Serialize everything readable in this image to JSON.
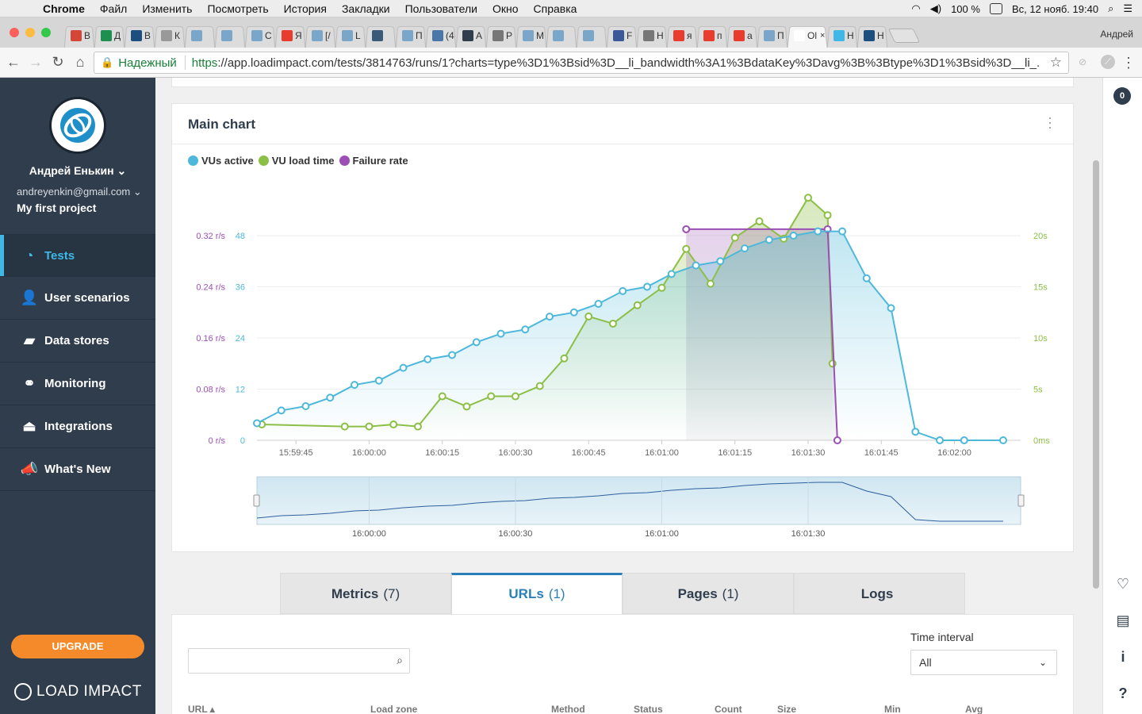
{
  "menubar": {
    "app": "Chrome",
    "items": [
      "Файл",
      "Изменить",
      "Посмотреть",
      "История",
      "Закладки",
      "Пользователи",
      "Окно",
      "Справка"
    ],
    "battery": "100 %",
    "clock": "Вс, 12 нояб.  19:40"
  },
  "tabs": [
    {
      "label": "В",
      "color": "#d44638"
    },
    {
      "label": "Д",
      "color": "#1d8f4e"
    },
    {
      "label": "В",
      "color": "#1c4f80"
    },
    {
      "label": "К",
      "color": "#999999"
    },
    {
      "label": "",
      "color": "#7aa6c9"
    },
    {
      "label": "",
      "color": "#7aa6c9"
    },
    {
      "label": "С",
      "color": "#7aa6c9"
    },
    {
      "label": "Я",
      "color": "#e93c2f"
    },
    {
      "label": "[/",
      "color": "#7aa6c9"
    },
    {
      "label": "L",
      "color": "#7aa6c9"
    },
    {
      "label": "",
      "color": "#3a5a7a"
    },
    {
      "label": "П",
      "color": "#7aa6c9"
    },
    {
      "label": "(4",
      "color": "#4a76a8"
    },
    {
      "label": "А",
      "color": "#2f3d4c"
    },
    {
      "label": "Р",
      "color": "#777777"
    },
    {
      "label": "М",
      "color": "#7aa6c9"
    },
    {
      "label": "",
      "color": "#7aa6c9"
    },
    {
      "label": "",
      "color": "#7aa6c9"
    },
    {
      "label": "F",
      "color": "#3b5998"
    },
    {
      "label": "Н",
      "color": "#777777"
    },
    {
      "label": "я",
      "color": "#e93c2f"
    },
    {
      "label": "п",
      "color": "#e93c2f"
    },
    {
      "label": "а",
      "color": "#e93c2f"
    },
    {
      "label": "П",
      "color": "#7aa6c9"
    },
    {
      "label": "Ol",
      "color": "#ffffff",
      "active": true
    },
    {
      "label": "Н",
      "color": "#3fb8e8"
    },
    {
      "label": "Н",
      "color": "#1c4f80"
    }
  ],
  "profile_name": "Андрей",
  "omnibox": {
    "secure_label": "Надежный",
    "scheme": "https",
    "url_rest": "://app.loadimpact.com/tests/3814763/runs/1?charts=type%3D1%3Bsid%3D__li_bandwidth%3A1%3BdataKey%3Davg%3B%3Btype%3D1%3Bsid%3D__li_..."
  },
  "sidebar": {
    "user_name": "Андрей Енькин",
    "email": "andreyenkin@gmail.com",
    "project": "My first project",
    "items": [
      {
        "label": "Tests",
        "icon": "dashboard-icon",
        "glyph": "◔",
        "active": true
      },
      {
        "label": "User scenarios",
        "icon": "user-scenario-icon",
        "glyph": "👤",
        "active": false
      },
      {
        "label": "Data stores",
        "icon": "folder-icon",
        "glyph": "▰",
        "active": false
      },
      {
        "label": "Monitoring",
        "icon": "binoculars-icon",
        "glyph": "⚭",
        "active": false
      },
      {
        "label": "Integrations",
        "icon": "plug-icon",
        "glyph": "⏏",
        "active": false
      },
      {
        "label": "What's New",
        "icon": "megaphone-icon",
        "glyph": "📣",
        "active": false
      }
    ],
    "upgrade_label": "UPGRADE",
    "brand": "LOAD IMPACT"
  },
  "main_chart": {
    "title": "Main chart",
    "legend": [
      {
        "name": "VUs active",
        "color": "#4db8d9"
      },
      {
        "name": "VU load time",
        "color": "#8cbf45"
      },
      {
        "name": "Failure rate",
        "color": "#9b4fb5"
      }
    ]
  },
  "chart_data": {
    "type": "line",
    "x_ticks": [
      "15:59:45",
      "16:00:00",
      "16:00:15",
      "16:00:30",
      "16:00:45",
      "16:01:00",
      "16:01:15",
      "16:01:30",
      "16:01:45",
      "16:02:00"
    ],
    "y_left_failure_ticks": [
      "0 r/s",
      "0.08 r/s",
      "0.16 r/s",
      "0.24 r/s",
      "0.32 r/s"
    ],
    "y_left_vus_ticks": [
      "0",
      "12",
      "24",
      "36",
      "48"
    ],
    "y_right_ticks": [
      "0ms",
      "5s",
      "10s",
      "15s",
      "20s"
    ],
    "ylim_vus": [
      0,
      48
    ],
    "ylim_failure": [
      0,
      0.32
    ],
    "ylim_load_ms": [
      0,
      20000
    ],
    "series": [
      {
        "name": "VUs active",
        "color": "#4db8d9",
        "points": [
          [
            "15:59:37",
            4
          ],
          [
            "15:59:42",
            7
          ],
          [
            "15:59:47",
            8
          ],
          [
            "15:59:52",
            10
          ],
          [
            "15:59:57",
            13
          ],
          [
            "16:00:02",
            14
          ],
          [
            "16:00:07",
            17
          ],
          [
            "16:00:12",
            19
          ],
          [
            "16:00:17",
            20
          ],
          [
            "16:00:22",
            23
          ],
          [
            "16:00:27",
            25
          ],
          [
            "16:00:32",
            26
          ],
          [
            "16:00:37",
            29
          ],
          [
            "16:00:42",
            30
          ],
          [
            "16:00:47",
            32
          ],
          [
            "16:00:52",
            35
          ],
          [
            "16:00:57",
            36
          ],
          [
            "16:01:02",
            39
          ],
          [
            "16:01:07",
            41
          ],
          [
            "16:01:12",
            42
          ],
          [
            "16:01:17",
            45
          ],
          [
            "16:01:22",
            47
          ],
          [
            "16:01:27",
            48
          ],
          [
            "16:01:32",
            49
          ],
          [
            "16:01:37",
            49
          ],
          [
            "16:01:42",
            38
          ],
          [
            "16:01:47",
            31
          ],
          [
            "16:01:52",
            2
          ],
          [
            "16:01:57",
            0
          ],
          [
            "16:02:02",
            0
          ],
          [
            "16:02:10",
            0
          ]
        ]
      },
      {
        "name": "VU load time",
        "color": "#8cbf45",
        "points": [
          [
            "15:59:38",
            1550
          ],
          [
            "15:59:55",
            1350
          ],
          [
            "16:00:00",
            1350
          ],
          [
            "16:00:05",
            1550
          ],
          [
            "16:00:10",
            1350
          ],
          [
            "16:00:15",
            4300
          ],
          [
            "16:00:20",
            3300
          ],
          [
            "16:00:25",
            4300
          ],
          [
            "16:00:30",
            4300
          ],
          [
            "16:00:35",
            5300
          ],
          [
            "16:00:40",
            8000
          ],
          [
            "16:00:45",
            12100
          ],
          [
            "16:00:50",
            11400
          ],
          [
            "16:00:55",
            13200
          ],
          [
            "16:01:00",
            14900
          ],
          [
            "16:01:05",
            18700
          ],
          [
            "16:01:10",
            15300
          ],
          [
            "16:01:15",
            19800
          ],
          [
            "16:01:20",
            21400
          ],
          [
            "16:01:25",
            19700
          ],
          [
            "16:01:30",
            23700
          ],
          [
            "16:01:34",
            22000
          ],
          [
            "16:01:35",
            7500
          ]
        ]
      },
      {
        "name": "Failure rate",
        "color": "#9b4fb5",
        "points": [
          [
            "16:01:05",
            0.33
          ],
          [
            "16:01:34",
            0.33
          ],
          [
            "16:01:36",
            0
          ]
        ]
      }
    ],
    "grid": true,
    "legend_position": "top-left"
  },
  "navigator": {
    "ticks": [
      "16:00:00",
      "16:00:30",
      "16:01:00",
      "16:01:30"
    ]
  },
  "tabs_lower": [
    {
      "label": "Metrics",
      "count": "(7)",
      "active": false
    },
    {
      "label": "URLs",
      "count": "(1)",
      "active": true
    },
    {
      "label": "Pages",
      "count": "(1)",
      "active": false
    },
    {
      "label": "Logs",
      "count": "",
      "active": false
    }
  ],
  "urls": {
    "search_placeholder": "",
    "time_interval_label": "Time interval",
    "time_interval_value": "All",
    "columns": [
      "URL",
      "Load zone",
      "Method",
      "Status",
      "Count",
      "Size",
      "Min",
      "Avg"
    ]
  },
  "rightbar": {
    "notifications": "0"
  }
}
